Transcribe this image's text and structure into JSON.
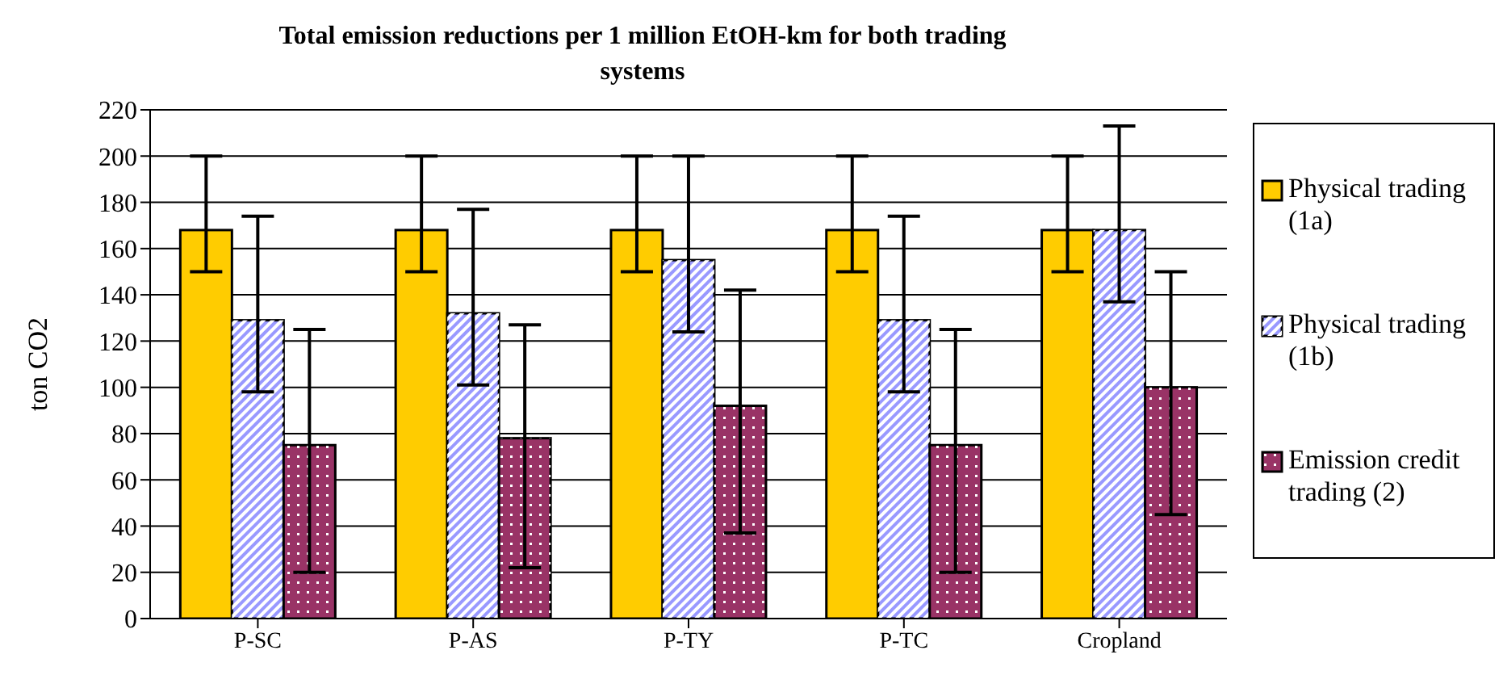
{
  "chart_data": {
    "type": "bar",
    "title": "Total emission reductions per 1 million EtOH-km for both trading systems",
    "ylabel": "ton CO2",
    "categories": [
      "P-SC",
      "P-AS",
      "P-TY",
      "P-TC",
      "Cropland"
    ],
    "series": [
      {
        "name": "Physical trading (1a)",
        "color": "#ffcc00",
        "values": [
          168,
          168,
          168,
          168,
          168
        ],
        "errors": [
          [
            150,
            200
          ],
          [
            150,
            200
          ],
          [
            150,
            200
          ],
          [
            150,
            200
          ],
          [
            150,
            200
          ]
        ]
      },
      {
        "name": "Physical trading (1b)",
        "color": "#9999ff",
        "values": [
          129,
          132,
          155,
          129,
          168
        ],
        "errors": [
          [
            98,
            174
          ],
          [
            101,
            177
          ],
          [
            124,
            200
          ],
          [
            98,
            174
          ],
          [
            137,
            213
          ]
        ]
      },
      {
        "name": "Emission credit trading (2)",
        "color": "#993366",
        "values": [
          75,
          78,
          92,
          75,
          100
        ],
        "errors": [
          [
            20,
            125
          ],
          [
            22,
            127
          ],
          [
            37,
            142
          ],
          [
            20,
            125
          ],
          [
            45,
            150
          ]
        ]
      }
    ],
    "ylim": [
      0,
      220
    ],
    "yticks": [
      0,
      20,
      40,
      60,
      80,
      100,
      120,
      140,
      160,
      180,
      200,
      220
    ],
    "grid": "y",
    "legend": "right"
  }
}
